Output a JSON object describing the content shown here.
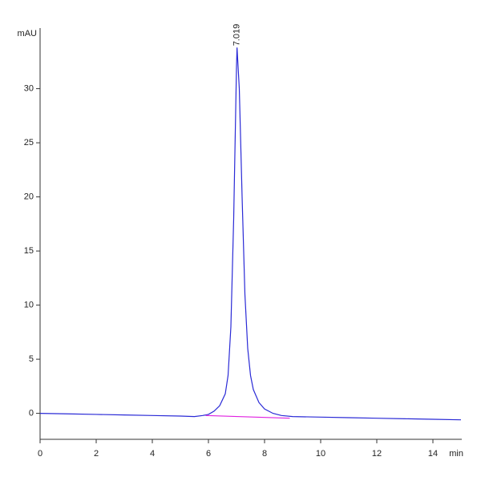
{
  "chart_data": {
    "type": "line",
    "y_label": "mAU",
    "x_label": "min",
    "xlim": [
      0,
      15
    ],
    "xticks": [
      0,
      2,
      4,
      6,
      8,
      10,
      12,
      14
    ],
    "ylim": [
      -2.4,
      35.6
    ],
    "yticks": [
      0,
      5,
      10,
      15,
      20,
      25,
      30
    ],
    "grid": false,
    "series": [
      {
        "color": "#2a2ad6",
        "x": [
          0,
          1,
          2,
          3,
          4,
          5,
          5.5,
          5.8,
          6.0,
          6.2,
          6.4,
          6.6,
          6.7,
          6.8,
          6.9,
          7.0,
          7.019,
          7.1,
          7.2,
          7.3,
          7.4,
          7.5,
          7.6,
          7.8,
          8.0,
          8.3,
          8.6,
          9,
          10,
          11,
          12,
          13,
          14,
          15
        ],
        "values": [
          0,
          -0.05,
          -0.1,
          -0.15,
          -0.2,
          -0.25,
          -0.3,
          -0.2,
          -0.1,
          0.2,
          0.7,
          1.8,
          3.5,
          8,
          18,
          32,
          33.8,
          30,
          20,
          11,
          6,
          3.5,
          2.2,
          1,
          0.4,
          0,
          -0.2,
          -0.3,
          -0.35,
          -0.4,
          -0.45,
          -0.5,
          -0.55,
          -0.6
        ]
      },
      {
        "color": "#e020e0",
        "x": [
          5.9,
          8.9
        ],
        "values": [
          -0.2,
          -0.45
        ]
      }
    ],
    "annotations": [
      {
        "text": "7.019",
        "x": 7.019,
        "y": 33.8
      }
    ]
  }
}
